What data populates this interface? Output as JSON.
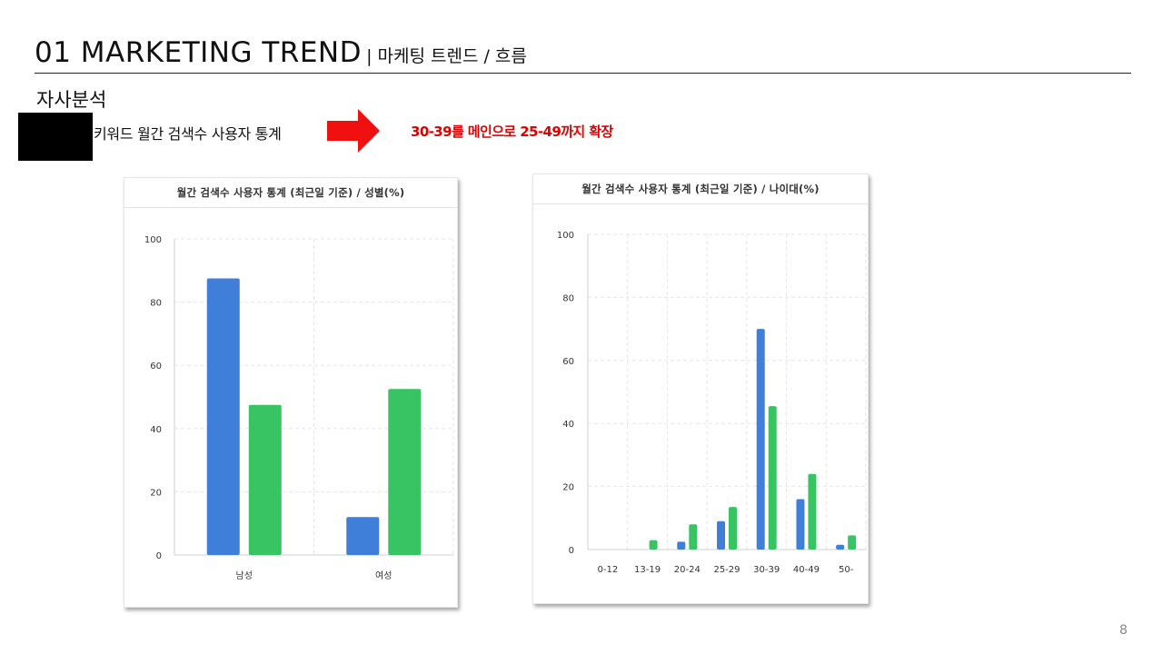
{
  "header": {
    "title": "01 MARKETING TREND",
    "subtitle": "| 마케팅 트렌드 / 흐름",
    "section": "자사분석",
    "description": "키워드 월간 검색수 사용자 통계",
    "highlight": "30-39를 메인으로 25-49까지 확장"
  },
  "page_number": "8",
  "colors": {
    "blue": "#3f7fd9",
    "green": "#39c464",
    "red": "#e00000"
  },
  "chart_data": [
    {
      "type": "bar",
      "title": "월간 검색수 사용자 통계 (최근일 기준) / 성별(%)",
      "categories": [
        "남성",
        "여성"
      ],
      "series": [
        {
          "values": [
            87.5,
            12
          ]
        },
        {
          "values": [
            47.5,
            52.5
          ]
        }
      ],
      "yticks": [
        "0",
        "20",
        "40",
        "60",
        "80",
        "100"
      ],
      "ylim": [
        0,
        100
      ],
      "grid": true
    },
    {
      "type": "bar",
      "title": "월간 검색수 사용자 통계 (최근일 기준) / 나이대(%)",
      "categories": [
        "0-12",
        "13-19",
        "20-24",
        "25-29",
        "30-39",
        "40-49",
        "50-"
      ],
      "series": [
        {
          "values": [
            0,
            0,
            2.5,
            9,
            70,
            16,
            1.5
          ]
        },
        {
          "values": [
            0,
            3,
            8,
            13.5,
            45.5,
            24,
            4.5
          ]
        }
      ],
      "yticks": [
        "0",
        "20",
        "40",
        "60",
        "80",
        "100"
      ],
      "ylim": [
        0,
        100
      ],
      "grid": true
    }
  ]
}
